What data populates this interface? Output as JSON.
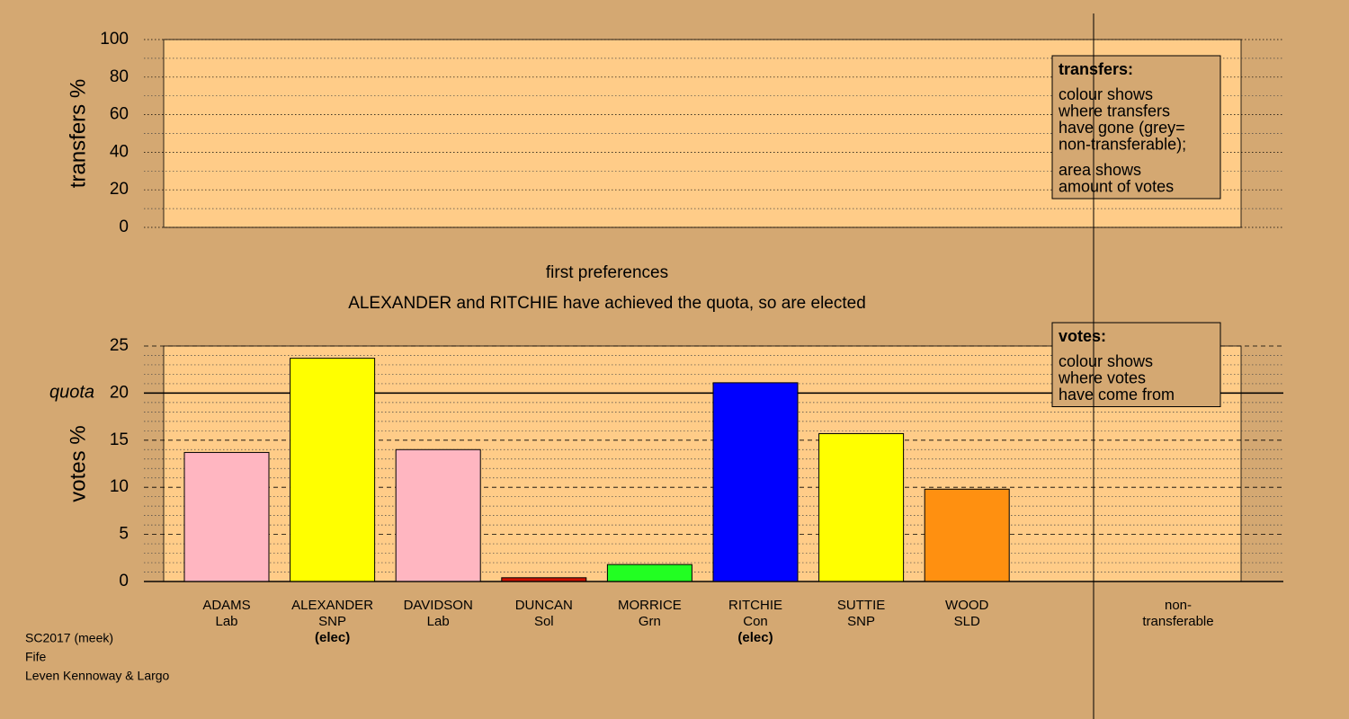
{
  "chart_data": [
    {
      "type": "bar",
      "ylabel": "transfers %",
      "ylim": [
        0,
        100
      ],
      "yticks": [
        0,
        20,
        40,
        60,
        80,
        100
      ],
      "minor_grid_step": 10,
      "legend": {
        "title": "transfers:",
        "paragraphs": [
          [
            "colour shows",
            "where transfers",
            "have gone (grey=",
            "non-transferable);"
          ],
          [
            "area shows",
            "amount of votes"
          ]
        ]
      }
    },
    {
      "type": "bar",
      "title": "first preferences",
      "subtitle": "ALEXANDER and RITCHIE have achieved the quota, so are elected",
      "ylabel": "votes %",
      "ylim": [
        0,
        25
      ],
      "yticks": [
        0,
        5,
        10,
        15,
        20,
        25
      ],
      "minor_grid_step": 1,
      "quota": {
        "value": 20,
        "label": "quota"
      },
      "categories": [
        "ADAMS",
        "ALEXANDER",
        "DAVIDSON",
        "DUNCAN",
        "MORRICE",
        "RITCHIE",
        "SUTTIE",
        "WOOD"
      ],
      "parties": [
        "Lab",
        "SNP",
        "Lab",
        "Sol",
        "Grn",
        "Con",
        "SNP",
        "SLD"
      ],
      "notes": [
        null,
        "(elec)",
        null,
        null,
        null,
        "(elec)",
        null,
        null
      ],
      "values": [
        13.7,
        23.7,
        14.0,
        0.4,
        1.8,
        21.1,
        15.7,
        9.8
      ],
      "colors": [
        "#ffb6c1",
        "#ffff00",
        "#ffb6c1",
        "#cc1100",
        "#22ff22",
        "#0000ff",
        "#ffff00",
        "#ff9010"
      ],
      "nontransferable_label": [
        "non-",
        "transferable"
      ],
      "legend": {
        "title": "votes:",
        "paragraphs": [
          [
            "colour shows",
            "where votes",
            "have come from"
          ]
        ]
      }
    }
  ],
  "footer": [
    "SC2017 (meek)",
    "Fife",
    "Leven Kennoway & Largo"
  ]
}
